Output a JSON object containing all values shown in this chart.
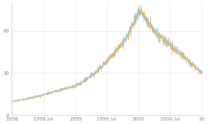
{
  "title": "",
  "xlabel": "",
  "ylabel": "",
  "ylim": [
    0,
    80
  ],
  "yticks": [
    0,
    30,
    60
  ],
  "background_color": "#ffffff",
  "grid_color": "#e8e8e8",
  "blue_color": "#85cce8",
  "orange_color": "#f5a94e",
  "xtick_labels": [
    "1998",
    "1998 Jul",
    "1999",
    "1999 Jul",
    "2000",
    "2000 Jul",
    "20"
  ],
  "tick_fontsize": 5.0,
  "figsize": [
    3.0,
    1.79
  ],
  "dpi": 100
}
